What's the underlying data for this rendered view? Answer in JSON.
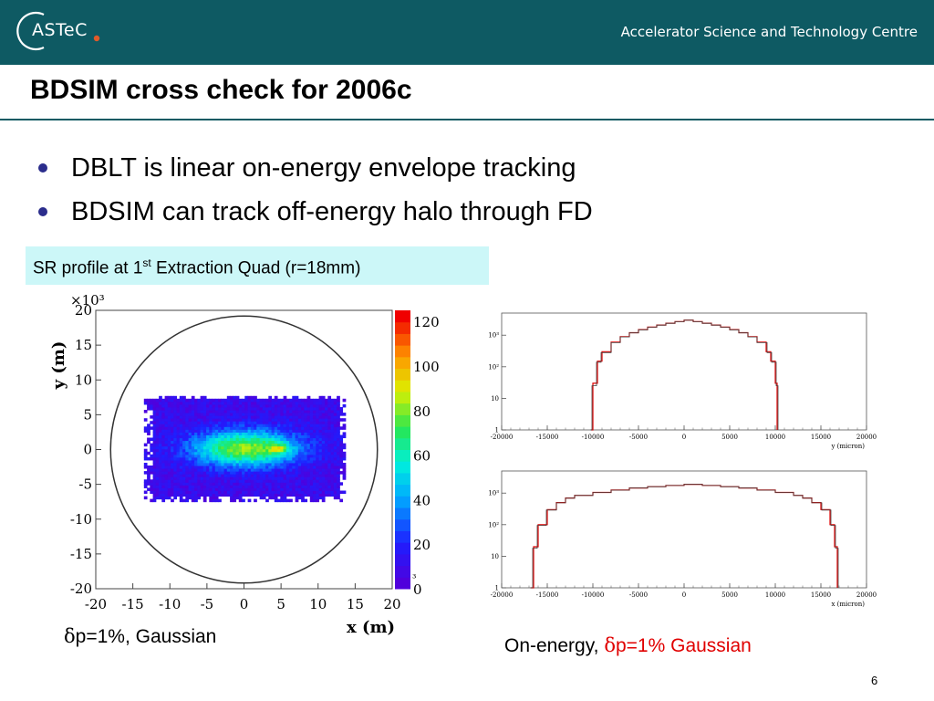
{
  "header": {
    "logo_text": "ASTeC",
    "org_name": "Accelerator Science and Technology Centre",
    "brand_color": "#0e5a63"
  },
  "title": "BDSIM cross check for 2006c",
  "bullets": [
    "DBLT is linear on-energy envelope tracking",
    "BDSIM can track off-energy halo through FD"
  ],
  "callout": {
    "text_before": "SR profile at 1",
    "sup": "st",
    "text_after": " Extraction Quad (r=18mm)",
    "bg_color": "#ccf7f8"
  },
  "captions": {
    "left_symbol": "δ",
    "left_text": "p=1%, Gaussian",
    "right_prefix": "On-energy, ",
    "right_symbol": "δ",
    "right_highlight": "p=1% Gaussian",
    "highlight_color": "#e00000"
  },
  "page_number": "6",
  "chart_data": [
    {
      "type": "heatmap",
      "xlabel": "x (m)",
      "ylabel": "y (m)",
      "y_multiplier": "×10^3",
      "colorbar_multiplier": "10^3",
      "xlim": [
        -20,
        20
      ],
      "ylim": [
        -20,
        20
      ],
      "x_ticks": [
        "-20",
        "-15",
        "-10",
        "-5",
        "0",
        "5",
        "10",
        "15",
        "20"
      ],
      "y_ticks": [
        "20",
        "15",
        "10",
        "5",
        "0",
        "-5",
        "-10",
        "-15",
        "-20"
      ],
      "colorbar_ticks": [
        "120",
        "100",
        "80",
        "60",
        "40",
        "20",
        "0"
      ],
      "colorbar_range": [
        0,
        125
      ],
      "aperture_radius": 18,
      "distribution": {
        "x_halfwidth": 13.5,
        "y_halfwidth": 7.5,
        "core_sigma_x": 5.0,
        "core_sigma_y": 1.8,
        "peak_x": 4.5,
        "peak_y": 0
      }
    },
    {
      "type": "line",
      "xlabel": "y (micron)",
      "y_scale": "log",
      "xlim": [
        -20000,
        20000
      ],
      "x_ticks": [
        "-20000",
        "-15000",
        "-10000",
        "-5000",
        "0",
        "5000",
        "10000",
        "15000",
        "20000"
      ],
      "y_tick_labels": [
        "10³",
        "10²",
        "10",
        "1"
      ],
      "y_decades": [
        3,
        2,
        1,
        0
      ],
      "series": [
        {
          "color": "#e00000",
          "x": [
            -10200,
            -10000,
            -9500,
            -9000,
            -8000,
            -7000,
            -6000,
            -5000,
            -4000,
            -3000,
            -2000,
            -1000,
            0,
            1000,
            2000,
            3000,
            4000,
            5000,
            6000,
            7000,
            8000,
            9000,
            9500,
            10000,
            10200
          ],
          "y": [
            1,
            30,
            150,
            300,
            600,
            900,
            1200,
            1500,
            1800,
            2100,
            2400,
            2700,
            3000,
            2700,
            2400,
            2100,
            1800,
            1500,
            1200,
            900,
            600,
            300,
            150,
            30,
            1
          ]
        },
        {
          "color": "#444444",
          "x": [
            -10300,
            -10100,
            -9600,
            -9100,
            -8000,
            -7000,
            -6000,
            -5000,
            -4000,
            -3000,
            -2000,
            -1000,
            0,
            1000,
            2000,
            3000,
            4000,
            5000,
            6000,
            7000,
            8000,
            9100,
            9600,
            10100,
            10300
          ],
          "y": [
            1,
            25,
            140,
            280,
            580,
            880,
            1180,
            1480,
            1780,
            2080,
            2380,
            2680,
            2980,
            2680,
            2380,
            2080,
            1780,
            1480,
            1180,
            880,
            580,
            280,
            140,
            25,
            1
          ]
        }
      ]
    },
    {
      "type": "line",
      "xlabel": "x (micron)",
      "y_scale": "log",
      "xlim": [
        -20000,
        20000
      ],
      "x_ticks": [
        "-20000",
        "-15000",
        "-10000",
        "-5000",
        "0",
        "5000",
        "10000",
        "15000",
        "20000"
      ],
      "y_tick_labels": [
        "10³",
        "10²",
        "10",
        "1"
      ],
      "y_decades": [
        3,
        2,
        1,
        0
      ],
      "series": [
        {
          "color": "#e00000",
          "x": [
            -16800,
            -16500,
            -16000,
            -15000,
            -14000,
            -13000,
            -12000,
            -10000,
            -8000,
            -6000,
            -4000,
            -2000,
            0,
            2000,
            4000,
            6000,
            8000,
            10000,
            12000,
            13000,
            14000,
            15000,
            16000,
            16500,
            16800
          ],
          "y": [
            1,
            20,
            100,
            300,
            500,
            700,
            850,
            1050,
            1250,
            1450,
            1600,
            1750,
            1900,
            1750,
            1600,
            1450,
            1250,
            1050,
            850,
            700,
            500,
            300,
            100,
            20,
            1
          ]
        },
        {
          "color": "#444444",
          "x": [
            -16900,
            -16600,
            -16100,
            -15100,
            -14000,
            -13000,
            -12000,
            -10000,
            -8000,
            -6000,
            -4000,
            -2000,
            0,
            2000,
            4000,
            6000,
            8000,
            10000,
            12000,
            13000,
            14000,
            15100,
            16100,
            16600,
            16900
          ],
          "y": [
            1,
            18,
            95,
            290,
            490,
            690,
            840,
            1040,
            1240,
            1440,
            1590,
            1740,
            1890,
            1740,
            1590,
            1440,
            1240,
            1040,
            840,
            690,
            490,
            290,
            95,
            18,
            1
          ]
        }
      ]
    }
  ]
}
